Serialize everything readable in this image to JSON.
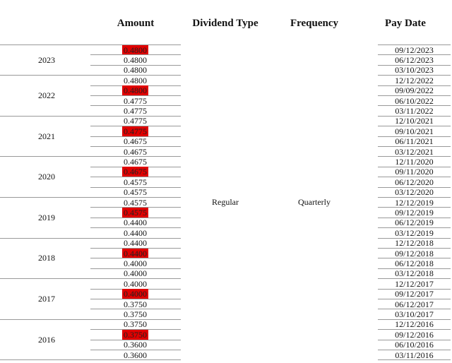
{
  "header": {
    "columns": [
      "Amount",
      "Dividend Type",
      "Frequency",
      "Pay Date"
    ]
  },
  "table": {
    "dividend_type": "Regular",
    "frequency": "Quarterly",
    "groups": [
      {
        "year": "2023",
        "rows": [
          {
            "amount": "0.4800",
            "pay_date": "09/12/2023",
            "highlight": true
          },
          {
            "amount": "0.4800",
            "pay_date": "06/12/2023",
            "highlight": false
          },
          {
            "amount": "0.4800",
            "pay_date": "03/10/2023",
            "highlight": false
          }
        ]
      },
      {
        "year": "2022",
        "rows": [
          {
            "amount": "0.4800",
            "pay_date": "12/12/2022",
            "highlight": false
          },
          {
            "amount": "0.4800",
            "pay_date": "09/09/2022",
            "highlight": true
          },
          {
            "amount": "0.4775",
            "pay_date": "06/10/2022",
            "highlight": false
          },
          {
            "amount": "0.4775",
            "pay_date": "03/11/2022",
            "highlight": false
          }
        ]
      },
      {
        "year": "2021",
        "rows": [
          {
            "amount": "0.4775",
            "pay_date": "12/10/2021",
            "highlight": false
          },
          {
            "amount": "0.4775",
            "pay_date": "09/10/2021",
            "highlight": true
          },
          {
            "amount": "0.4675",
            "pay_date": "06/11/2021",
            "highlight": false
          },
          {
            "amount": "0.4675",
            "pay_date": "03/12/2021",
            "highlight": false
          }
        ]
      },
      {
        "year": "2020",
        "rows": [
          {
            "amount": "0.4675",
            "pay_date": "12/11/2020",
            "highlight": false
          },
          {
            "amount": "0.4675",
            "pay_date": "09/11/2020",
            "highlight": true
          },
          {
            "amount": "0.4575",
            "pay_date": "06/12/2020",
            "highlight": false
          },
          {
            "amount": "0.4575",
            "pay_date": "03/12/2020",
            "highlight": false
          }
        ]
      },
      {
        "year": "2019",
        "rows": [
          {
            "amount": "0.4575",
            "pay_date": "12/12/2019",
            "highlight": false
          },
          {
            "amount": "0.4575",
            "pay_date": "09/12/2019",
            "highlight": true
          },
          {
            "amount": "0.4400",
            "pay_date": "06/12/2019",
            "highlight": false
          },
          {
            "amount": "0.4400",
            "pay_date": "03/12/2019",
            "highlight": false
          }
        ]
      },
      {
        "year": "2018",
        "rows": [
          {
            "amount": "0.4400",
            "pay_date": "12/12/2018",
            "highlight": false
          },
          {
            "amount": "0.4400",
            "pay_date": "09/12/2018",
            "highlight": true
          },
          {
            "amount": "0.4000",
            "pay_date": "06/12/2018",
            "highlight": false
          },
          {
            "amount": "0.4000",
            "pay_date": "03/12/2018",
            "highlight": false
          }
        ]
      },
      {
        "year": "2017",
        "rows": [
          {
            "amount": "0.4000",
            "pay_date": "12/12/2017",
            "highlight": false
          },
          {
            "amount": "0.4000",
            "pay_date": "09/12/2017",
            "highlight": true
          },
          {
            "amount": "0.3750",
            "pay_date": "06/12/2017",
            "highlight": false
          },
          {
            "amount": "0.3750",
            "pay_date": "03/10/2017",
            "highlight": false
          }
        ]
      },
      {
        "year": "2016",
        "rows": [
          {
            "amount": "0.3750",
            "pay_date": "12/12/2016",
            "highlight": false
          },
          {
            "amount": "0.3750",
            "pay_date": "09/12/2016",
            "highlight": true
          },
          {
            "amount": "0.3600",
            "pay_date": "06/10/2016",
            "highlight": false
          },
          {
            "amount": "0.3600",
            "pay_date": "03/11/2016",
            "highlight": false
          }
        ]
      }
    ]
  }
}
